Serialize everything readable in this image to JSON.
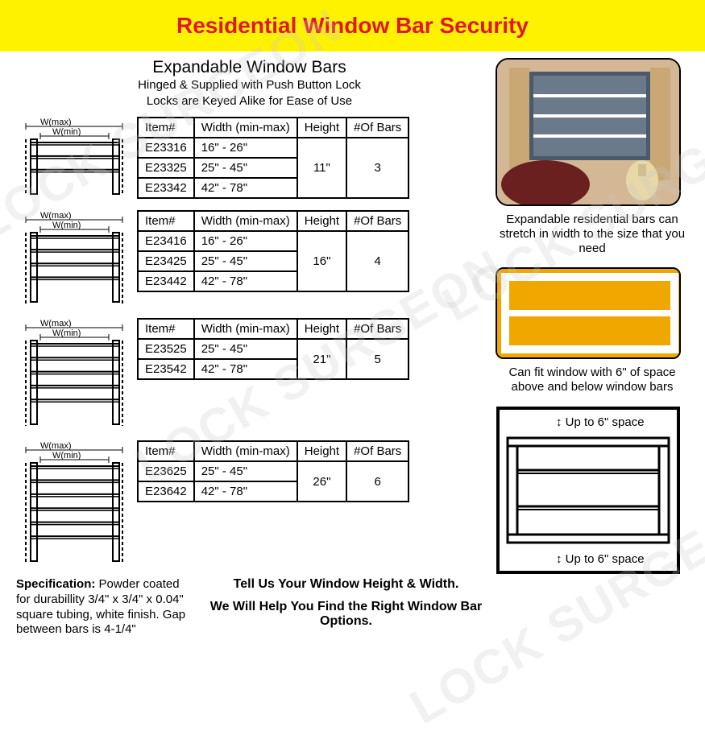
{
  "header": {
    "title": "Residential Window Bar Security"
  },
  "subtitle": {
    "main": "Expandable Window Bars",
    "line1": "Hinged & Supplied with Push Button Lock",
    "line2": "Locks are Keyed Alike for Ease of Use"
  },
  "table_headers": {
    "item": "Item#",
    "width": "Width (min-max)",
    "height": "Height",
    "bars": "#Of Bars"
  },
  "diagram_labels": {
    "wmax": "W(max)",
    "wmin": "W(min)"
  },
  "tables": [
    {
      "height": "11\"",
      "bars": "3",
      "bar_count": 3,
      "rows": [
        {
          "item": "E23316",
          "width": "16\" - 26\""
        },
        {
          "item": "E23325",
          "width": "25\" - 45\""
        },
        {
          "item": "E23342",
          "width": "42\" - 78\""
        }
      ]
    },
    {
      "height": "16\"",
      "bars": "4",
      "bar_count": 4,
      "rows": [
        {
          "item": "E23416",
          "width": "16\" - 26\""
        },
        {
          "item": "E23425",
          "width": "25\" - 45\""
        },
        {
          "item": "E23442",
          "width": "42\" - 78\""
        }
      ]
    },
    {
      "height": "21\"",
      "bars": "5",
      "bar_count": 5,
      "rows": [
        {
          "item": "E23525",
          "width": "25\" - 45\""
        },
        {
          "item": "E23542",
          "width": "42\" - 78\""
        }
      ]
    },
    {
      "height": "26\"",
      "bars": "6",
      "bar_count": 6,
      "rows": [
        {
          "item": "E23625",
          "width": "25\" - 45\""
        },
        {
          "item": "E23642",
          "width": "42\" - 78\""
        }
      ]
    }
  ],
  "right": {
    "caption1": "Expandable residential bars can stretch in width to the size that you need",
    "caption2": "Can fit window with 6\" of space above and below window bars",
    "space_top": "Up to 6\" space",
    "space_bot": "Up to 6\" space"
  },
  "footer": {
    "spec_label": "Specification:",
    "spec_text": "Powder coated for durabillity 3/4\" x 3/4\" x 0.04\" square tubing, white finish. Gap between bars is 4-1/4\"",
    "help1": "Tell Us Your Window Height & Width.",
    "help2": "We Will Help You Find the Right Window Bar Options."
  },
  "colors": {
    "banner_bg": "#fff200",
    "title_red": "#e0162b",
    "border": "#000000",
    "photo_yellow": "#f0a800"
  }
}
